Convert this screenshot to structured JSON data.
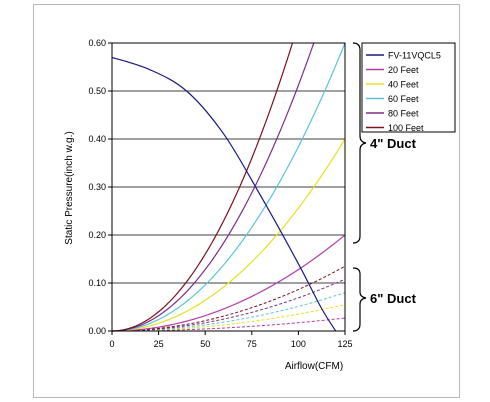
{
  "chart_data": {
    "type": "line",
    "title": "",
    "xlabel": "Airflow(CFM)",
    "ylabel": "Static Pressure(inch w.g.)",
    "xlim": [
      0,
      125
    ],
    "ylim": [
      0,
      0.6
    ],
    "x_ticks": [
      "0",
      "25",
      "50",
      "75",
      "100",
      "125"
    ],
    "y_ticks": [
      "0.00",
      "0.10",
      "0.20",
      "0.30",
      "0.40",
      "0.50",
      "0.60"
    ],
    "grid": "horizontal",
    "legend_position": "top-right",
    "fan_curve": {
      "name": "FV-11VQCL5",
      "color": "#1a1a80",
      "points": [
        [
          0,
          0.57
        ],
        [
          20,
          0.545
        ],
        [
          40,
          0.5
        ],
        [
          60,
          0.41
        ],
        [
          80,
          0.28
        ],
        [
          100,
          0.14
        ],
        [
          112,
          0.05
        ],
        [
          120,
          0.0
        ]
      ]
    },
    "series_4in": [
      {
        "name": "20 Feet",
        "color": "#b13ea8",
        "k": 0.2
      },
      {
        "name": "40 Feet",
        "color": "#e6e020",
        "k": 0.4
      },
      {
        "name": "60 Feet",
        "color": "#5cc4d8",
        "k": 0.6
      },
      {
        "name": "80 Feet",
        "color": "#7a2f8a",
        "k": 0.8
      },
      {
        "name": "100 Feet",
        "color": "#7a1020",
        "k": 1.0
      }
    ],
    "series_6in": [
      {
        "color": "#b13ea8",
        "k": 0.027
      },
      {
        "color": "#e6e020",
        "k": 0.055
      },
      {
        "color": "#5cc4d8",
        "k": 0.08
      },
      {
        "color": "#7a2f8a",
        "k": 0.108
      },
      {
        "color": "#7a1020",
        "k": 0.135
      }
    ],
    "annotations": [
      "4\" Duct",
      "6\" Duct"
    ]
  }
}
